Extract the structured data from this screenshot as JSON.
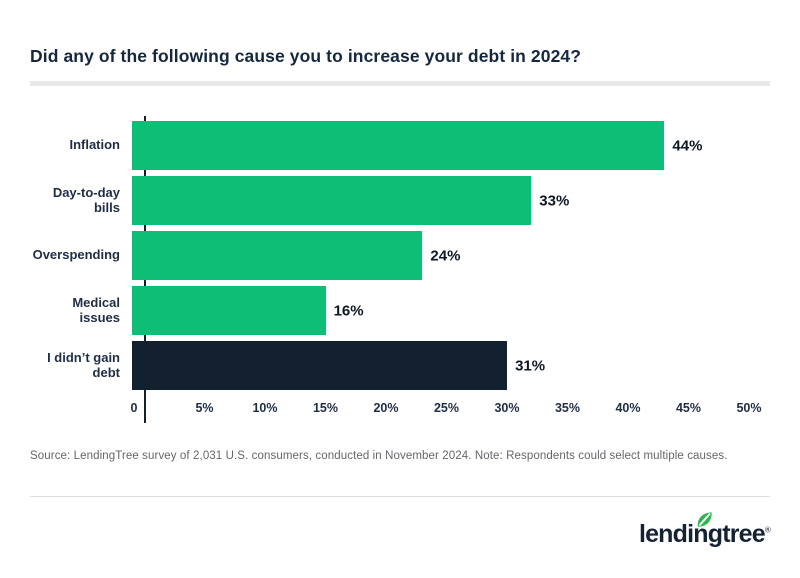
{
  "page": {
    "title": "Did any of the following cause you to increase your debt in 2024?",
    "source_note": "Source: LendingTree survey of 2,031 U.S. consumers, conducted in November 2024. Note: Respondents could select multiple causes.",
    "brand": {
      "logo_text": "lendingtree",
      "registered_mark": "®",
      "leaf_icon": "leaf-icon"
    }
  },
  "colors": {
    "bar_green": "#0dbe76",
    "bar_navy": "#13202f",
    "title_navy": "#15283e",
    "axis_text": "#1f2d45",
    "value_text": "#0e1726",
    "source_text": "#63666b",
    "divider_gray": "#e8e8e8",
    "leaf_green": "#2eb353"
  },
  "chart_data": {
    "type": "bar",
    "orientation": "horizontal",
    "title": "Did any of the following cause you to increase your debt in 2024?",
    "categories": [
      "Inflation",
      "Day-to-day bills",
      "Overspending",
      "Medical issues",
      "I didn’t gain debt"
    ],
    "values": [
      44,
      33,
      24,
      16,
      31
    ],
    "value_labels": [
      "44%",
      "33%",
      "24%",
      "16%",
      "31%"
    ],
    "bar_colors": [
      "#0dbe76",
      "#0dbe76",
      "#0dbe76",
      "#0dbe76",
      "#13202f"
    ],
    "xlabel": "",
    "ylabel": "",
    "xlim": [
      0,
      50
    ],
    "x_ticks": [
      0,
      5,
      10,
      15,
      20,
      25,
      30,
      35,
      40,
      45,
      50
    ],
    "x_tick_labels": [
      "0",
      "5%",
      "10%",
      "15%",
      "20%",
      "25%",
      "30%",
      "35%",
      "40%",
      "45%",
      "50%"
    ],
    "grid": false,
    "legend": false
  }
}
